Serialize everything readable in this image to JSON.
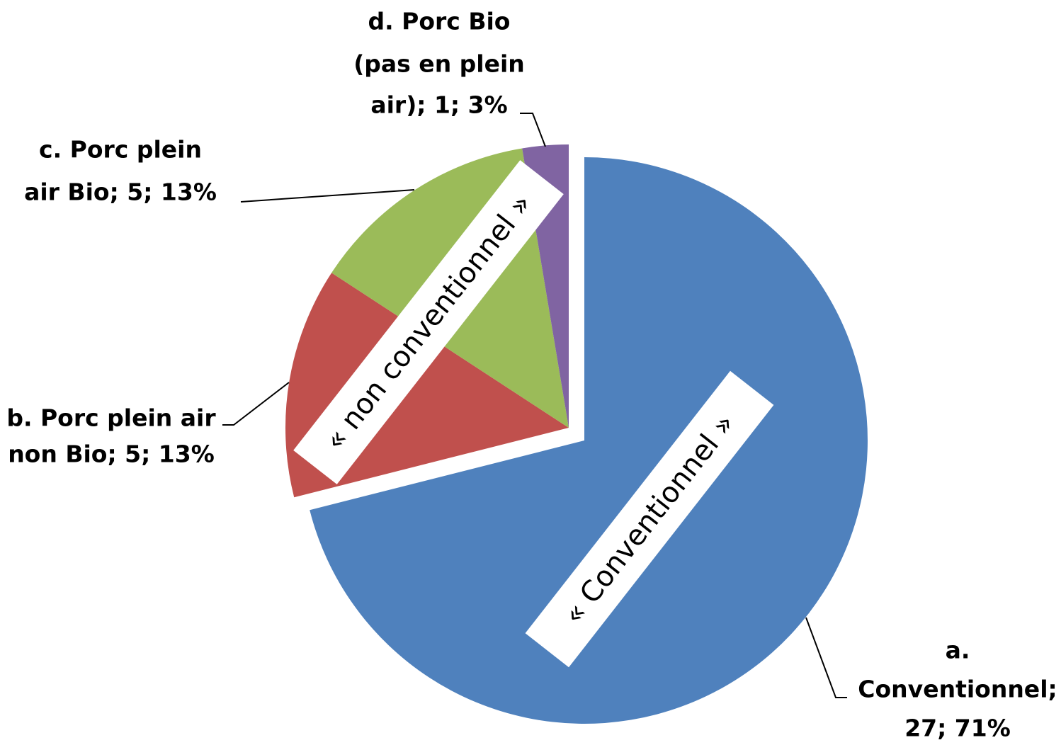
{
  "chart_data": {
    "type": "pie",
    "categories": [
      "a. Conventionnel",
      "b. Porc plein air non Bio",
      "c. Porc plein air Bio",
      "d. Porc Bio (pas en plein air)"
    ],
    "values": [
      27,
      5,
      5,
      1
    ],
    "value_labels": [
      [
        "a.",
        "Conventionnel;",
        "27; 71%"
      ],
      [
        "b. Porc plein air",
        "non Bio; 5; 13%"
      ],
      [
        "c. Porc plein",
        "air Bio; 5; 13%"
      ],
      [
        "d. Porc Bio",
        "(pas en plein",
        "air); 1; 3%"
      ]
    ],
    "colors": [
      "#4f81bd",
      "#c0504d",
      "#9bbb59",
      "#8064a2"
    ],
    "annotations": [
      "« Conventionnel »",
      "« non conventionnel »"
    ]
  }
}
